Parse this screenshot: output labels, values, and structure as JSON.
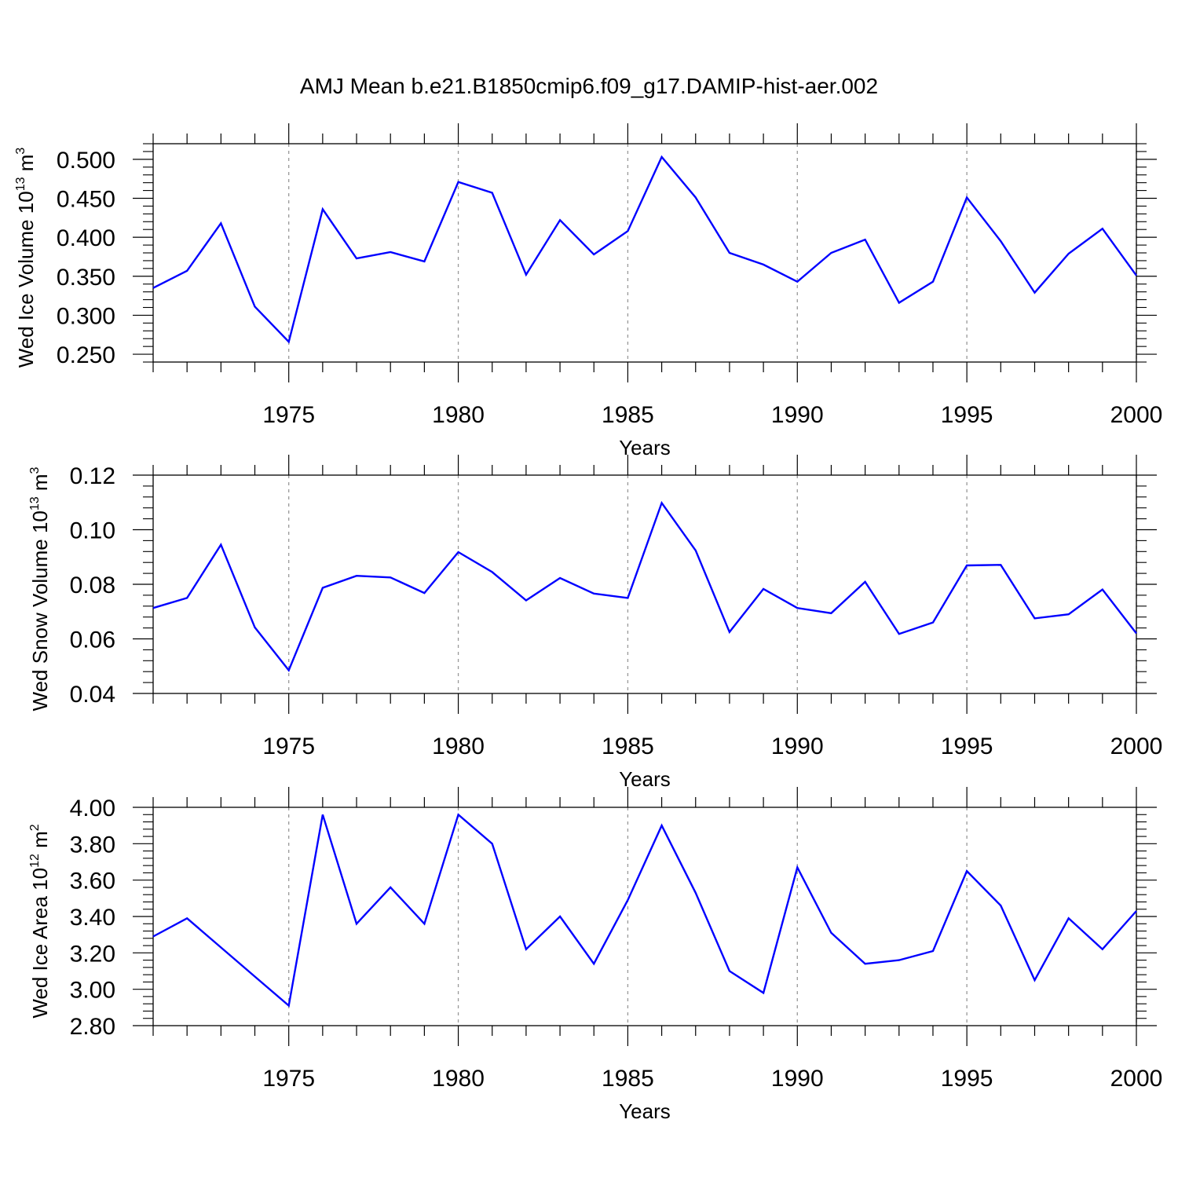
{
  "title": "AMJ Mean b.e21.B1850cmip6.f09_g17.DAMIP-hist-aer.002",
  "colors": {
    "line": "#0000ff",
    "axis": "#000000",
    "grid": "#999999"
  },
  "chart_data": [
    {
      "type": "line",
      "name": "ice-volume",
      "ylabel_main": "Wed Ice Volume 10",
      "ylabel_exp": "13",
      "ylabel_unit": " m",
      "ylabel_unit_exp": "3",
      "xlabel": "Years",
      "xlim": [
        1971,
        2000
      ],
      "ylim": [
        0.24,
        0.52
      ],
      "yticks": [
        0.25,
        0.3,
        0.35,
        0.4,
        0.45,
        0.5
      ],
      "ytick_labels": [
        "0.250",
        "0.300",
        "0.350",
        "0.400",
        "0.450",
        "0.500"
      ],
      "yminor_step": 0.01,
      "xticks": [
        1975,
        1980,
        1985,
        1990,
        1995,
        2000
      ],
      "xtick_labels": [
        "1975",
        "1980",
        "1985",
        "1990",
        "1995",
        "2000"
      ],
      "x": [
        1971,
        1972,
        1973,
        1974,
        1975,
        1976,
        1977,
        1978,
        1979,
        1980,
        1981,
        1982,
        1983,
        1984,
        1985,
        1986,
        1987,
        1988,
        1989,
        1990,
        1991,
        1992,
        1993,
        1994,
        1995,
        1996,
        1997,
        1998,
        1999,
        2000
      ],
      "values": [
        0.335,
        0.357,
        0.418,
        0.311,
        0.266,
        0.436,
        0.373,
        0.381,
        0.369,
        0.471,
        0.457,
        0.352,
        0.422,
        0.378,
        0.408,
        0.503,
        0.451,
        0.38,
        0.365,
        0.343,
        0.38,
        0.397,
        0.316,
        0.343,
        0.451,
        0.395,
        0.329,
        0.379,
        0.411,
        0.351
      ]
    },
    {
      "type": "line",
      "name": "snow-volume",
      "ylabel_main": "Wed Snow Volume 10",
      "ylabel_exp": "13",
      "ylabel_unit": " m",
      "ylabel_unit_exp": "3",
      "xlabel": "Years",
      "xlim": [
        1971,
        2000
      ],
      "ylim": [
        0.04,
        0.12
      ],
      "yticks": [
        0.04,
        0.06,
        0.08,
        0.1,
        0.12
      ],
      "ytick_labels": [
        "0.04",
        "0.06",
        "0.08",
        "0.10",
        "0.12"
      ],
      "yminor_step": 0.004,
      "xticks": [
        1975,
        1980,
        1985,
        1990,
        1995,
        2000
      ],
      "xtick_labels": [
        "1975",
        "1980",
        "1985",
        "1990",
        "1995",
        "2000"
      ],
      "x": [
        1971,
        1972,
        1973,
        1974,
        1975,
        1976,
        1977,
        1978,
        1979,
        1980,
        1981,
        1982,
        1983,
        1984,
        1985,
        1986,
        1987,
        1988,
        1989,
        1990,
        1991,
        1992,
        1993,
        1994,
        1995,
        1996,
        1997,
        1998,
        1999,
        2000
      ],
      "values": [
        0.0713,
        0.075,
        0.0945,
        0.0642,
        0.0485,
        0.0787,
        0.0831,
        0.0825,
        0.0768,
        0.0918,
        0.0845,
        0.0741,
        0.0823,
        0.0766,
        0.075,
        0.1098,
        0.0924,
        0.0625,
        0.0783,
        0.0713,
        0.0694,
        0.0809,
        0.0618,
        0.066,
        0.0869,
        0.0871,
        0.0675,
        0.069,
        0.0781,
        0.062
      ]
    },
    {
      "type": "line",
      "name": "ice-area",
      "ylabel_main": "Wed Ice Area 10",
      "ylabel_exp": "12",
      "ylabel_unit": " m",
      "ylabel_unit_exp": "2",
      "xlabel": "Years",
      "xlim": [
        1971,
        2000
      ],
      "ylim": [
        2.8,
        4.0
      ],
      "yticks": [
        2.8,
        3.0,
        3.2,
        3.4,
        3.6,
        3.8,
        4.0
      ],
      "ytick_labels": [
        "2.80",
        "3.00",
        "3.20",
        "3.40",
        "3.60",
        "3.80",
        "4.00"
      ],
      "yminor_step": 0.04,
      "xticks": [
        1975,
        1980,
        1985,
        1990,
        1995,
        2000
      ],
      "xtick_labels": [
        "1975",
        "1980",
        "1985",
        "1990",
        "1995",
        "2000"
      ],
      "x": [
        1971,
        1972,
        1973,
        1974,
        1975,
        1976,
        1977,
        1978,
        1979,
        1980,
        1981,
        1982,
        1983,
        1984,
        1985,
        1986,
        1987,
        1988,
        1989,
        1990,
        1991,
        1992,
        1993,
        1994,
        1995,
        1996,
        1997,
        1998,
        1999,
        2000
      ],
      "values": [
        3.29,
        3.39,
        3.23,
        3.07,
        2.91,
        3.96,
        3.36,
        3.56,
        3.36,
        3.96,
        3.8,
        3.22,
        3.4,
        3.14,
        3.49,
        3.9,
        3.53,
        3.1,
        2.98,
        3.67,
        3.31,
        3.14,
        3.16,
        3.21,
        3.65,
        3.46,
        3.05,
        3.39,
        3.22,
        3.43
      ]
    }
  ]
}
